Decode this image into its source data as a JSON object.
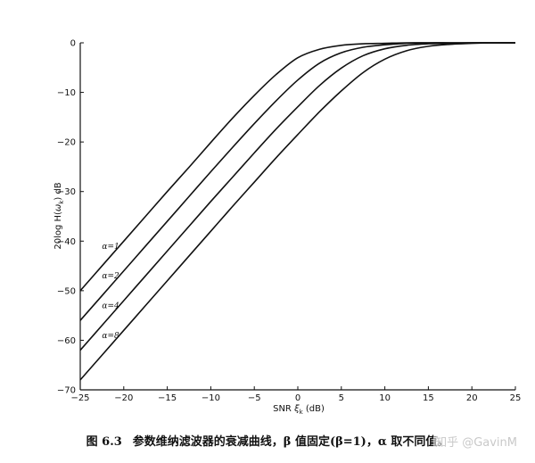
{
  "chart_data": {
    "type": "line",
    "title": "",
    "xlabel_prefix": "SNR ",
    "xlabel_symbol": "ξ",
    "xlabel_sub": "k",
    "xlabel_suffix": " (dB)",
    "ylabel_prefix": "20log H(",
    "ylabel_symbol": "ω",
    "ylabel_sub": "k",
    "ylabel_suffix": ") dB",
    "xlim": [
      -25,
      25
    ],
    "ylim": [
      -70,
      0
    ],
    "xticks": [
      -25,
      -20,
      -15,
      -10,
      -5,
      0,
      5,
      10,
      15,
      20,
      25
    ],
    "yticks": [
      0,
      -10,
      -20,
      -30,
      -40,
      -50,
      -60,
      -70
    ],
    "grid": false,
    "x": [
      -25,
      -22.5,
      -20,
      -17.5,
      -15,
      -12.5,
      -10,
      -7.5,
      -5,
      -2.5,
      0,
      2.5,
      5,
      7.5,
      10,
      12.5,
      15,
      17.5,
      20,
      22.5,
      25
    ],
    "series": [
      {
        "name": "α=1",
        "label_y": -41,
        "values": [
          -50.0,
          -45.0,
          -40.0,
          -35.0,
          -30.0,
          -25.1,
          -20.1,
          -15.2,
          -10.6,
          -6.4,
          -3.0,
          -1.3,
          -0.5,
          -0.2,
          -0.1,
          0.0,
          0.0,
          0.0,
          0.0,
          0.0,
          0.0
        ]
      },
      {
        "name": "α=2",
        "label_y": -47,
        "values": [
          -56.0,
          -51.0,
          -46.0,
          -41.0,
          -36.0,
          -31.0,
          -26.0,
          -21.1,
          -16.3,
          -11.7,
          -7.5,
          -4.1,
          -2.0,
          -0.9,
          -0.4,
          -0.1,
          0.0,
          0.0,
          0.0,
          0.0,
          0.0
        ]
      },
      {
        "name": "α=4",
        "label_y": -53,
        "values": [
          -62.0,
          -57.0,
          -52.0,
          -47.0,
          -42.0,
          -37.0,
          -32.0,
          -27.1,
          -22.2,
          -17.4,
          -12.9,
          -8.6,
          -5.1,
          -2.6,
          -1.2,
          -0.5,
          -0.2,
          -0.1,
          0.0,
          0.0,
          0.0
        ]
      },
      {
        "name": "α=8",
        "label_y": -59,
        "values": [
          -68.0,
          -63.0,
          -58.0,
          -53.0,
          -48.0,
          -43.0,
          -38.0,
          -33.0,
          -28.1,
          -23.2,
          -18.5,
          -13.9,
          -9.7,
          -6.0,
          -3.3,
          -1.6,
          -0.7,
          -0.3,
          -0.1,
          0.0,
          0.0
        ]
      }
    ],
    "line_color": "#111111"
  },
  "caption": {
    "figure_no": "图 6.3",
    "text": "参数维纳滤波器的衰减曲线，β 值固定(β=1)，α 取不同值。"
  },
  "watermark": "知乎 @GavinM"
}
